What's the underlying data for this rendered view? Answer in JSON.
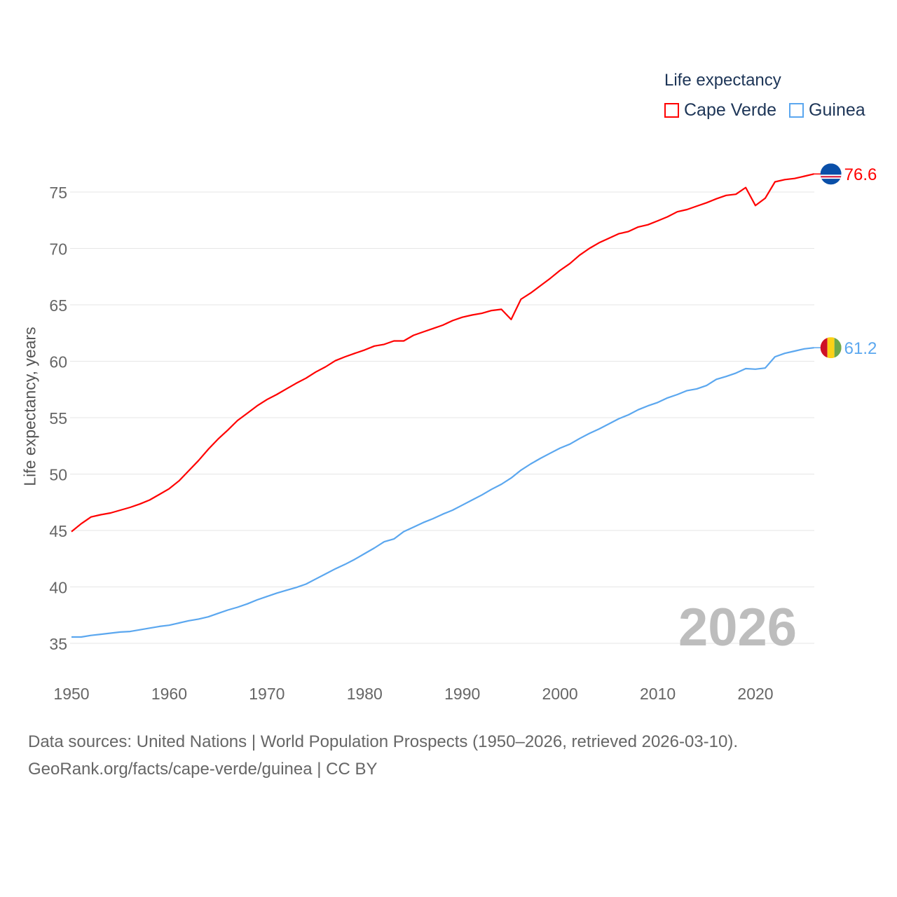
{
  "chart_data": {
    "type": "line",
    "title": "Life expectancy",
    "ylabel": "Life expectancy, years",
    "xlabel": "",
    "xlim": [
      1950,
      2026
    ],
    "ylim": [
      35,
      76.6
    ],
    "yticks": [
      35,
      40,
      45,
      50,
      55,
      60,
      65,
      70,
      75
    ],
    "xticks": [
      1950,
      1960,
      1970,
      1980,
      1990,
      2000,
      2010,
      2020
    ],
    "grid": true,
    "legend_position": "top-right",
    "current_year": "2026",
    "x": [
      1950,
      1951,
      1952,
      1953,
      1954,
      1955,
      1956,
      1957,
      1958,
      1959,
      1960,
      1961,
      1962,
      1963,
      1964,
      1965,
      1966,
      1967,
      1968,
      1969,
      1970,
      1971,
      1972,
      1973,
      1974,
      1975,
      1976,
      1977,
      1978,
      1979,
      1980,
      1981,
      1982,
      1983,
      1984,
      1985,
      1986,
      1987,
      1988,
      1989,
      1990,
      1991,
      1992,
      1993,
      1994,
      1995,
      1996,
      1997,
      1998,
      1999,
      2000,
      2001,
      2002,
      2003,
      2004,
      2005,
      2006,
      2007,
      2008,
      2009,
      2010,
      2011,
      2012,
      2013,
      2014,
      2015,
      2016,
      2017,
      2018,
      2019,
      2020,
      2021,
      2022,
      2023,
      2024,
      2025,
      2026
    ],
    "series": [
      {
        "name": "Cape Verde",
        "color": "#ff0000",
        "end_label": "76.6",
        "flag": "cape-verde",
        "values": [
          44.9,
          45.6,
          46.2,
          46.4,
          46.55,
          46.8,
          47.05,
          47.35,
          47.7,
          48.2,
          48.7,
          49.4,
          50.3,
          51.2,
          52.2,
          53.1,
          53.9,
          54.75,
          55.4,
          56.05,
          56.6,
          57.05,
          57.55,
          58.05,
          58.5,
          59.05,
          59.5,
          60.05,
          60.4,
          60.7,
          61.0,
          61.35,
          61.5,
          61.8,
          61.8,
          62.3,
          62.6,
          62.9,
          63.2,
          63.6,
          63.9,
          64.1,
          64.25,
          64.5,
          64.6,
          63.7,
          65.5,
          66.05,
          66.7,
          67.35,
          68.05,
          68.65,
          69.4,
          70.0,
          70.5,
          70.9,
          71.3,
          71.5,
          71.9,
          72.1,
          72.45,
          72.8,
          73.25,
          73.45,
          73.75,
          74.05,
          74.4,
          74.7,
          74.8,
          75.4,
          73.8,
          74.45,
          75.9,
          76.1,
          76.2,
          76.4,
          76.6
        ]
      },
      {
        "name": "Guinea",
        "color": "#5ba7ef",
        "end_label": "61.2",
        "flag": "guinea",
        "values": [
          35.56,
          35.56,
          35.7,
          35.8,
          35.9,
          36.0,
          36.05,
          36.2,
          36.35,
          36.5,
          36.6,
          36.8,
          37.0,
          37.15,
          37.35,
          37.65,
          37.95,
          38.2,
          38.5,
          38.85,
          39.15,
          39.45,
          39.7,
          39.95,
          40.25,
          40.7,
          41.15,
          41.6,
          42.0,
          42.45,
          42.95,
          43.45,
          44.0,
          44.25,
          44.9,
          45.3,
          45.7,
          46.05,
          46.45,
          46.8,
          47.25,
          47.7,
          48.15,
          48.65,
          49.1,
          49.65,
          50.35,
          50.9,
          51.4,
          51.85,
          52.3,
          52.65,
          53.15,
          53.6,
          54.0,
          54.45,
          54.9,
          55.25,
          55.7,
          56.05,
          56.35,
          56.75,
          57.05,
          57.4,
          57.55,
          57.85,
          58.4,
          58.65,
          58.95,
          59.35,
          59.3,
          59.4,
          60.4,
          60.7,
          60.9,
          61.1,
          61.2
        ]
      }
    ]
  },
  "footer": {
    "line1": "Data sources: United Nations | World Population Prospects (1950–2026, retrieved 2026-03-10).",
    "line2": "GeoRank.org/facts/cape-verde/guinea | CC BY"
  }
}
